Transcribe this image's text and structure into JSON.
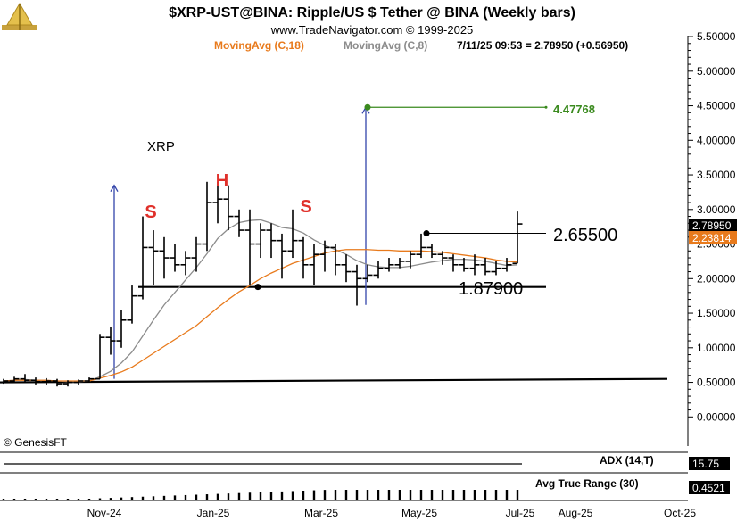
{
  "header": {
    "title": "$XRP-UST@BINA:  Ripple/US $ Tether @ BINA  (Weekly bars)",
    "subtitle": "www.TradeNavigator.com © 1999-2025",
    "ma_long_label": "MovingAvg (C,18)",
    "ma_short_label": "MovingAvg (C,8)",
    "quote_label": "7/11/25 09:53 = 2.78950 (+0.56950)"
  },
  "colors": {
    "bars": "#000000",
    "ma_long": "#e87a1c",
    "ma_short": "#8c8c8c",
    "target": "#3a8a1e",
    "arrows": "#3344aa",
    "letters": "#e0302a",
    "price_tag_last": "#000000",
    "price_tag_ma": "#e87a1c"
  },
  "watermark": "© GenesisFT",
  "chart_data": {
    "type": "candlestick",
    "title": "$XRP-UST@BINA:  Ripple/US $ Tether @ BINA  (Weekly bars)",
    "symbol_label": "XRP",
    "y_range": [
      -0.45,
      5.5
    ],
    "y_ticks": [
      "5.50000",
      "5.00000",
      "4.50000",
      "4.00000",
      "3.50000",
      "3.00000",
      "2.50000",
      "2.00000",
      "1.50000",
      "1.00000",
      "0.50000",
      "0.00000"
    ],
    "x_ticks": [
      "Nov-24",
      "Jan-25",
      "Mar-25",
      "May-25",
      "Jul-25",
      "Aug-25",
      "Oct-25"
    ],
    "bars": [
      [
        0.5,
        0.55,
        0.48,
        0.52
      ],
      [
        0.52,
        0.58,
        0.5,
        0.55
      ],
      [
        0.55,
        0.62,
        0.5,
        0.53
      ],
      [
        0.53,
        0.57,
        0.47,
        0.51
      ],
      [
        0.51,
        0.56,
        0.46,
        0.52
      ],
      [
        0.52,
        0.55,
        0.44,
        0.48
      ],
      [
        0.48,
        0.53,
        0.44,
        0.5
      ],
      [
        0.5,
        0.54,
        0.46,
        0.52
      ],
      [
        0.52,
        0.57,
        0.5,
        0.55
      ],
      [
        0.55,
        1.2,
        0.55,
        1.15
      ],
      [
        1.15,
        1.3,
        0.9,
        1.1
      ],
      [
        1.1,
        1.55,
        1.0,
        1.4
      ],
      [
        1.4,
        1.9,
        1.35,
        1.75
      ],
      [
        1.75,
        2.9,
        1.7,
        2.45
      ],
      [
        2.45,
        2.7,
        1.9,
        2.4
      ],
      [
        2.4,
        2.6,
        2.0,
        2.3
      ],
      [
        2.3,
        2.5,
        2.1,
        2.2
      ],
      [
        2.2,
        2.4,
        2.05,
        2.3
      ],
      [
        2.3,
        2.6,
        2.1,
        2.5
      ],
      [
        2.5,
        3.4,
        2.4,
        3.1
      ],
      [
        3.1,
        3.4,
        2.8,
        3.15
      ],
      [
        3.15,
        3.35,
        2.7,
        2.9
      ],
      [
        2.9,
        3.0,
        2.6,
        2.7
      ],
      [
        2.7,
        3.0,
        1.9,
        2.5
      ],
      [
        2.5,
        2.8,
        2.3,
        2.7
      ],
      [
        2.7,
        2.8,
        2.3,
        2.55
      ],
      [
        2.55,
        2.65,
        2.0,
        2.4
      ],
      [
        2.4,
        3.0,
        2.3,
        2.55
      ],
      [
        2.55,
        2.6,
        2.0,
        2.2
      ],
      [
        2.2,
        2.5,
        1.9,
        2.35
      ],
      [
        2.35,
        2.55,
        2.1,
        2.45
      ],
      [
        2.45,
        2.5,
        2.05,
        2.2
      ],
      [
        2.2,
        2.35,
        1.95,
        2.1
      ],
      [
        2.1,
        2.2,
        1.61,
        2.0
      ],
      [
        2.0,
        2.2,
        1.95,
        2.05
      ],
      [
        2.05,
        2.25,
        2.0,
        2.15
      ],
      [
        2.15,
        2.3,
        2.1,
        2.2
      ],
      [
        2.2,
        2.3,
        2.15,
        2.25
      ],
      [
        2.25,
        2.4,
        2.15,
        2.35
      ],
      [
        2.35,
        2.65,
        2.3,
        2.45
      ],
      [
        2.45,
        2.5,
        2.3,
        2.35
      ],
      [
        2.35,
        2.4,
        2.2,
        2.3
      ],
      [
        2.3,
        2.35,
        2.1,
        2.2
      ],
      [
        2.2,
        2.3,
        2.1,
        2.15
      ],
      [
        2.15,
        2.35,
        2.05,
        2.2
      ],
      [
        2.2,
        2.3,
        2.05,
        2.1
      ],
      [
        2.1,
        2.25,
        2.05,
        2.15
      ],
      [
        2.15,
        2.3,
        2.1,
        2.2
      ],
      [
        2.22,
        2.97,
        2.22,
        2.79
      ]
    ],
    "ma_long": [
      0.52,
      0.53,
      0.53,
      0.53,
      0.53,
      0.52,
      0.52,
      0.52,
      0.52,
      0.56,
      0.6,
      0.65,
      0.72,
      0.82,
      0.92,
      1.02,
      1.12,
      1.22,
      1.32,
      1.45,
      1.58,
      1.7,
      1.81,
      1.9,
      2.0,
      2.08,
      2.15,
      2.22,
      2.27,
      2.32,
      2.37,
      2.4,
      2.42,
      2.42,
      2.42,
      2.41,
      2.41,
      2.4,
      2.4,
      2.4,
      2.39,
      2.38,
      2.36,
      2.34,
      2.32,
      2.3,
      2.27,
      2.25,
      2.24
    ],
    "ma_short": [
      0.52,
      0.53,
      0.54,
      0.53,
      0.53,
      0.52,
      0.51,
      0.51,
      0.52,
      0.58,
      0.66,
      0.78,
      0.94,
      1.17,
      1.4,
      1.62,
      1.8,
      1.98,
      2.16,
      2.36,
      2.58,
      2.72,
      2.81,
      2.84,
      2.85,
      2.8,
      2.74,
      2.72,
      2.66,
      2.56,
      2.48,
      2.42,
      2.35,
      2.26,
      2.2,
      2.17,
      2.16,
      2.16,
      2.18,
      2.21,
      2.24,
      2.26,
      2.28,
      2.28,
      2.27,
      2.25,
      2.22,
      2.19,
      2.2
    ],
    "annotations": {
      "neckline_value": "1.87900",
      "resistance_value": "2.65500",
      "target_value": "4.47768",
      "shoulder_left": "S",
      "head": "H",
      "shoulder_right": "S"
    },
    "price_tags": {
      "last": "2.78950",
      "ma": "2.23814"
    },
    "indicators": [
      {
        "name": "ADX (14,T)",
        "value": "15.75"
      },
      {
        "name": "Avg True Range (30)",
        "value": "0.4521"
      }
    ]
  }
}
